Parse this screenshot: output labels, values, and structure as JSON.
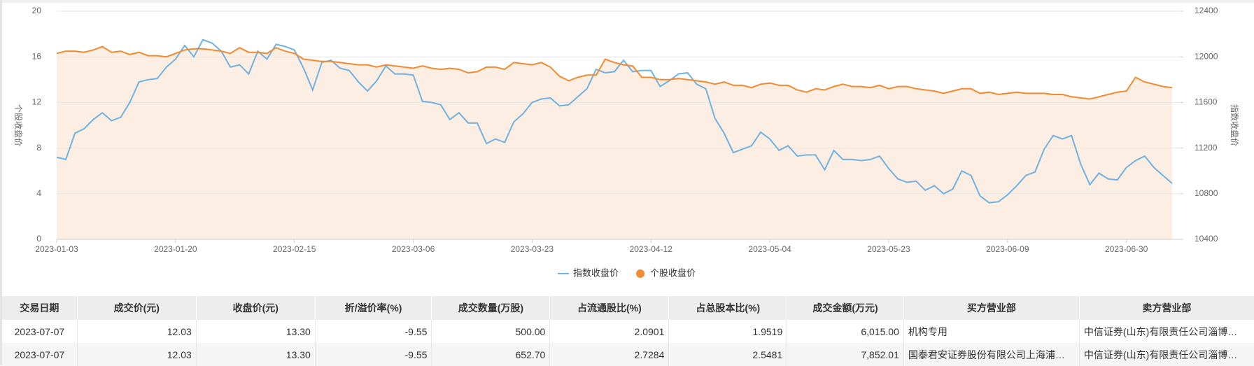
{
  "chart_data": {
    "type": "line",
    "categories": [
      "2023-01-03",
      null,
      null,
      null,
      null,
      null,
      null,
      null,
      null,
      null,
      null,
      null,
      null,
      "2023-01-20",
      null,
      null,
      null,
      null,
      null,
      null,
      null,
      null,
      null,
      null,
      null,
      null,
      "2023-02-15",
      null,
      null,
      null,
      null,
      null,
      null,
      null,
      null,
      null,
      null,
      null,
      null,
      "2023-03-06",
      null,
      null,
      null,
      null,
      null,
      null,
      null,
      null,
      null,
      null,
      null,
      null,
      "2023-03-23",
      null,
      null,
      null,
      null,
      null,
      null,
      null,
      null,
      null,
      null,
      null,
      null,
      "2023-04-12",
      null,
      null,
      null,
      null,
      null,
      null,
      null,
      null,
      null,
      null,
      null,
      null,
      "2023-05-04",
      null,
      null,
      null,
      null,
      null,
      null,
      null,
      null,
      null,
      null,
      null,
      null,
      "2023-05-23",
      null,
      null,
      null,
      null,
      null,
      null,
      null,
      null,
      null,
      null,
      null,
      null,
      "2023-06-09",
      null,
      null,
      null,
      null,
      null,
      null,
      null,
      null,
      null,
      null,
      null,
      null,
      "2023-06-30",
      null,
      null,
      null,
      null,
      null
    ],
    "y_label": "个股收盘价",
    "y2_label": "指数收盘价",
    "ylim": [
      0,
      20
    ],
    "yticks": [
      0,
      4,
      8,
      12,
      16,
      20
    ],
    "y2lim": [
      10400,
      12400
    ],
    "y2ticks": [
      10400,
      10800,
      11200,
      11600,
      12000,
      12400
    ],
    "grid": true,
    "legend": "bottom",
    "series": [
      {
        "name": "指数收盘价",
        "color": "#6fb1e1",
        "axis": "y2",
        "values": [
          11120,
          11100,
          11330,
          11370,
          11450,
          11510,
          11440,
          11470,
          11600,
          11780,
          11800,
          11810,
          11910,
          11980,
          12100,
          12000,
          12150,
          12120,
          12050,
          11910,
          11930,
          11850,
          12050,
          11980,
          12110,
          12090,
          12060,
          11900,
          11710,
          11950,
          11970,
          11900,
          11880,
          11780,
          11700,
          11790,
          11920,
          11850,
          11850,
          11840,
          11610,
          11600,
          11580,
          11450,
          11510,
          11420,
          11420,
          11240,
          11280,
          11250,
          11430,
          11500,
          11600,
          11630,
          11640,
          11570,
          11580,
          11650,
          11720,
          11890,
          11860,
          11870,
          11970,
          11870,
          11880,
          11880,
          11740,
          11790,
          11850,
          11860,
          11760,
          11720,
          11460,
          11330,
          11160,
          11190,
          11220,
          11340,
          11280,
          11180,
          11220,
          11130,
          11140,
          11140,
          11010,
          11180,
          11100,
          11100,
          11090,
          11100,
          11130,
          11020,
          10930,
          10900,
          10910,
          10830,
          10870,
          10800,
          10840,
          11000,
          10960,
          10780,
          10720,
          10730,
          10790,
          10870,
          10960,
          10990,
          11190,
          11310,
          11280,
          11310,
          11060,
          10880,
          10980,
          10930,
          10920,
          11030,
          11090,
          11130,
          11030,
          10960,
          10890
        ]
      },
      {
        "name": "个股收盘价",
        "color": "#f28a30",
        "axis": "y",
        "area": true,
        "area_color": "#fdeee3",
        "values": [
          16.3,
          16.5,
          16.5,
          16.4,
          16.6,
          16.9,
          16.4,
          16.5,
          16.2,
          16.4,
          16.1,
          16.1,
          16.0,
          16.3,
          16.6,
          16.7,
          16.7,
          16.6,
          16.5,
          16.3,
          16.8,
          16.4,
          16.4,
          16.3,
          16.8,
          16.5,
          16.3,
          15.8,
          15.7,
          15.6,
          15.6,
          15.5,
          15.4,
          15.3,
          15.3,
          15.1,
          15.3,
          15.2,
          15.1,
          15.0,
          15.2,
          15.0,
          14.9,
          15.0,
          14.9,
          14.6,
          14.7,
          15.1,
          15.1,
          14.9,
          15.5,
          15.4,
          15.3,
          15.5,
          15.1,
          14.3,
          13.9,
          14.2,
          14.4,
          14.4,
          15.8,
          15.5,
          15.3,
          15.2,
          14.2,
          14.2,
          14.0,
          14.0,
          14.1,
          14.0,
          13.9,
          13.8,
          13.6,
          13.8,
          13.5,
          13.5,
          13.3,
          13.6,
          13.7,
          13.5,
          13.5,
          13.1,
          12.9,
          13.2,
          13.1,
          13.4,
          13.6,
          13.4,
          13.4,
          13.3,
          13.5,
          13.2,
          13.4,
          13.4,
          13.2,
          13.1,
          13.0,
          12.8,
          13.0,
          13.2,
          13.2,
          12.8,
          12.9,
          12.7,
          12.8,
          12.9,
          12.8,
          12.8,
          12.8,
          12.7,
          12.7,
          12.5,
          12.4,
          12.3,
          12.5,
          12.7,
          12.9,
          13.0,
          14.2,
          13.8,
          13.6,
          13.4,
          13.3
        ]
      }
    ]
  },
  "table": {
    "header": [
      "交易日期",
      "成交价(元)",
      "收盘价(元)",
      "折/溢价率(%)",
      "成交数量(万股)",
      "占流通股比(%)",
      "占总股本比(%)",
      "成交金额(万元)",
      "买方营业部",
      "卖方营业部"
    ],
    "rows": [
      [
        "2023-07-07",
        "12.03",
        "13.30",
        "-9.55",
        "500.00",
        "2.0901",
        "1.9519",
        "6,015.00",
        "机构专用",
        "中信证券(山东)有限责任公司淄博…"
      ],
      [
        "2023-07-07",
        "12.03",
        "13.30",
        "-9.55",
        "652.70",
        "2.7284",
        "2.5481",
        "7,852.01",
        "国泰君安证券股份有限公司上海浦…",
        "中信证券(山东)有限责任公司淄博…"
      ]
    ]
  }
}
